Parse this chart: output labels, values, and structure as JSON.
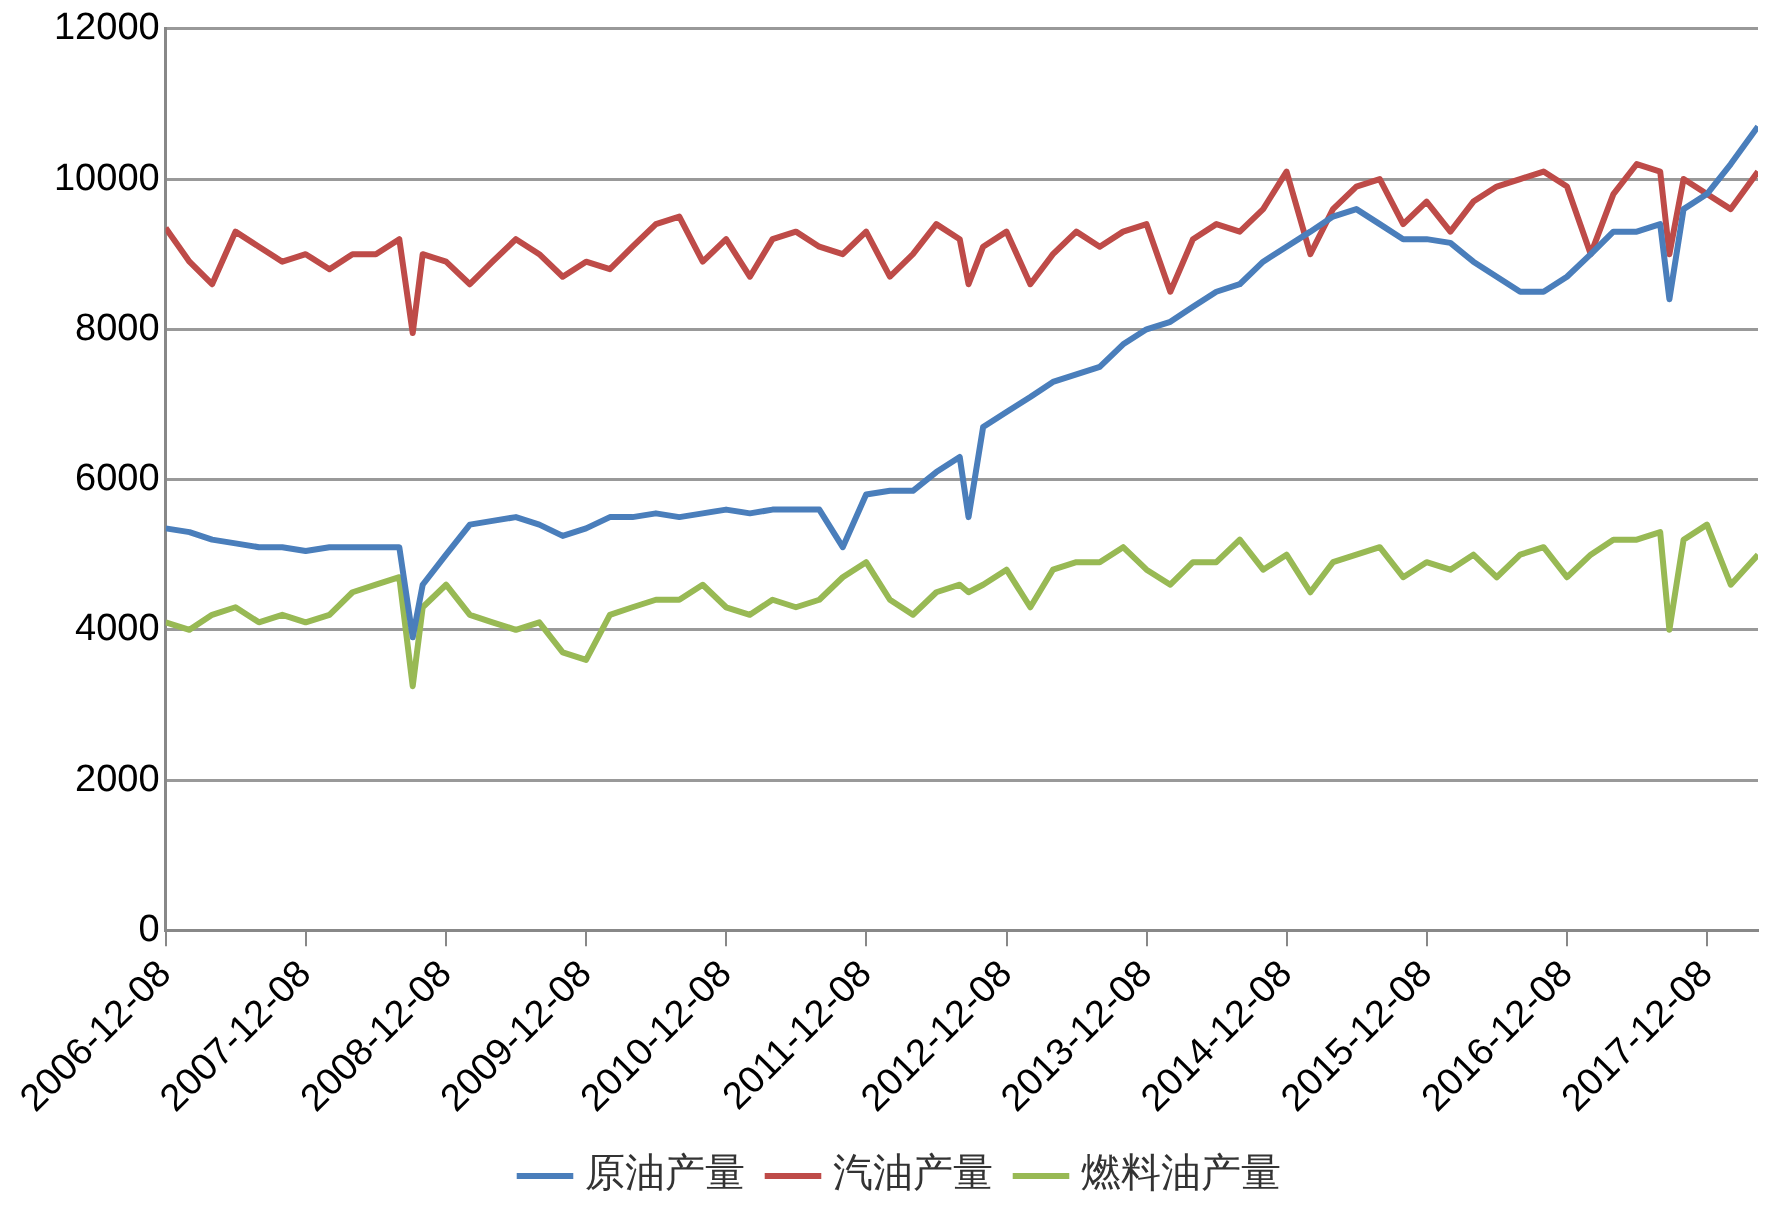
{
  "chart_data": {
    "type": "line",
    "x": [
      "2006-12-08",
      "2007-02-08",
      "2007-04-08",
      "2007-06-08",
      "2007-08-08",
      "2007-10-08",
      "2007-12-08",
      "2008-02-08",
      "2008-04-08",
      "2008-06-08",
      "2008-08-08",
      "2008-09-12",
      "2008-10-08",
      "2008-12-08",
      "2009-02-08",
      "2009-04-08",
      "2009-06-08",
      "2009-08-08",
      "2009-10-08",
      "2009-12-08",
      "2010-02-08",
      "2010-04-08",
      "2010-06-08",
      "2010-08-08",
      "2010-10-08",
      "2010-12-08",
      "2011-02-08",
      "2011-04-08",
      "2011-06-08",
      "2011-08-08",
      "2011-10-08",
      "2011-12-08",
      "2012-02-08",
      "2012-04-08",
      "2012-06-08",
      "2012-08-08",
      "2012-08-31",
      "2012-10-08",
      "2012-12-08",
      "2013-02-08",
      "2013-04-08",
      "2013-06-08",
      "2013-08-08",
      "2013-10-08",
      "2013-12-08",
      "2014-02-08",
      "2014-04-08",
      "2014-06-08",
      "2014-08-08",
      "2014-10-08",
      "2014-12-08",
      "2015-02-08",
      "2015-04-08",
      "2015-06-08",
      "2015-08-08",
      "2015-10-08",
      "2015-12-08",
      "2016-02-08",
      "2016-04-08",
      "2016-06-08",
      "2016-08-08",
      "2016-10-08",
      "2016-12-08",
      "2017-02-08",
      "2017-04-08",
      "2017-06-08",
      "2017-08-08",
      "2017-09-01",
      "2017-10-08",
      "2017-12-08",
      "2018-02-08",
      "2018-04-20"
    ],
    "series": [
      {
        "name": "原油产量",
        "color": "#4a7ebb",
        "values": [
          5350,
          5300,
          5200,
          5150,
          5100,
          5100,
          5050,
          5100,
          5100,
          5100,
          5100,
          3900,
          4600,
          5000,
          5400,
          5450,
          5500,
          5400,
          5250,
          5350,
          5500,
          5500,
          5550,
          5500,
          5550,
          5600,
          5550,
          5600,
          5600,
          5600,
          5100,
          5800,
          5850,
          5850,
          6100,
          6300,
          5500,
          6700,
          6900,
          7100,
          7300,
          7400,
          7500,
          7800,
          8000,
          8100,
          8300,
          8500,
          8600,
          8900,
          9100,
          9300,
          9500,
          9600,
          9400,
          9200,
          9200,
          9150,
          8900,
          8700,
          8500,
          8500,
          8700,
          9000,
          9300,
          9300,
          9400,
          8400,
          9600,
          9800,
          10200,
          10700
        ]
      },
      {
        "name": "汽油产量",
        "color": "#be4b48",
        "values": [
          9350,
          8900,
          8600,
          9300,
          9100,
          8900,
          9000,
          8800,
          9000,
          9000,
          9200,
          7950,
          9000,
          8900,
          8600,
          8900,
          9200,
          9000,
          8700,
          8900,
          8800,
          9100,
          9400,
          9500,
          8900,
          9200,
          8700,
          9200,
          9300,
          9100,
          9000,
          9300,
          8700,
          9000,
          9400,
          9200,
          8600,
          9100,
          9300,
          8600,
          9000,
          9300,
          9100,
          9300,
          9400,
          8500,
          9200,
          9400,
          9300,
          9600,
          10100,
          9000,
          9600,
          9900,
          10000,
          9400,
          9700,
          9300,
          9700,
          9900,
          10000,
          10100,
          9900,
          9000,
          9800,
          10200,
          10100,
          9000,
          10000,
          9800,
          9600,
          10100
        ]
      },
      {
        "name": "燃料油产量",
        "color": "#98b954",
        "values": [
          4100,
          4000,
          4200,
          4300,
          4100,
          4200,
          4100,
          4200,
          4500,
          4600,
          4700,
          3250,
          4300,
          4600,
          4200,
          4100,
          4000,
          4100,
          3700,
          3600,
          4200,
          4300,
          4400,
          4400,
          4600,
          4300,
          4200,
          4400,
          4300,
          4400,
          4700,
          4900,
          4400,
          4200,
          4500,
          4600,
          4500,
          4600,
          4800,
          4300,
          4800,
          4900,
          4900,
          5100,
          4800,
          4600,
          4900,
          4900,
          5200,
          4800,
          5000,
          4500,
          4900,
          5000,
          5100,
          4700,
          4900,
          4800,
          5000,
          4700,
          5000,
          5100,
          4700,
          5000,
          5200,
          5200,
          5300,
          4000,
          5200,
          5400,
          4600,
          5000
        ]
      }
    ],
    "xlim": [
      "2006-12-08",
      "2018-04-20"
    ],
    "xticks": [
      "2006-12-08",
      "2007-12-08",
      "2008-12-08",
      "2009-12-08",
      "2010-12-08",
      "2011-12-08",
      "2012-12-08",
      "2013-12-08",
      "2014-12-08",
      "2015-12-08",
      "2016-12-08",
      "2017-12-08"
    ],
    "ylim": [
      0,
      12000
    ],
    "yticks": [
      0,
      2000,
      4000,
      6000,
      8000,
      10000,
      12000
    ],
    "grid": "y",
    "legend": "bottom",
    "marker": "none",
    "line_style": "solid"
  }
}
